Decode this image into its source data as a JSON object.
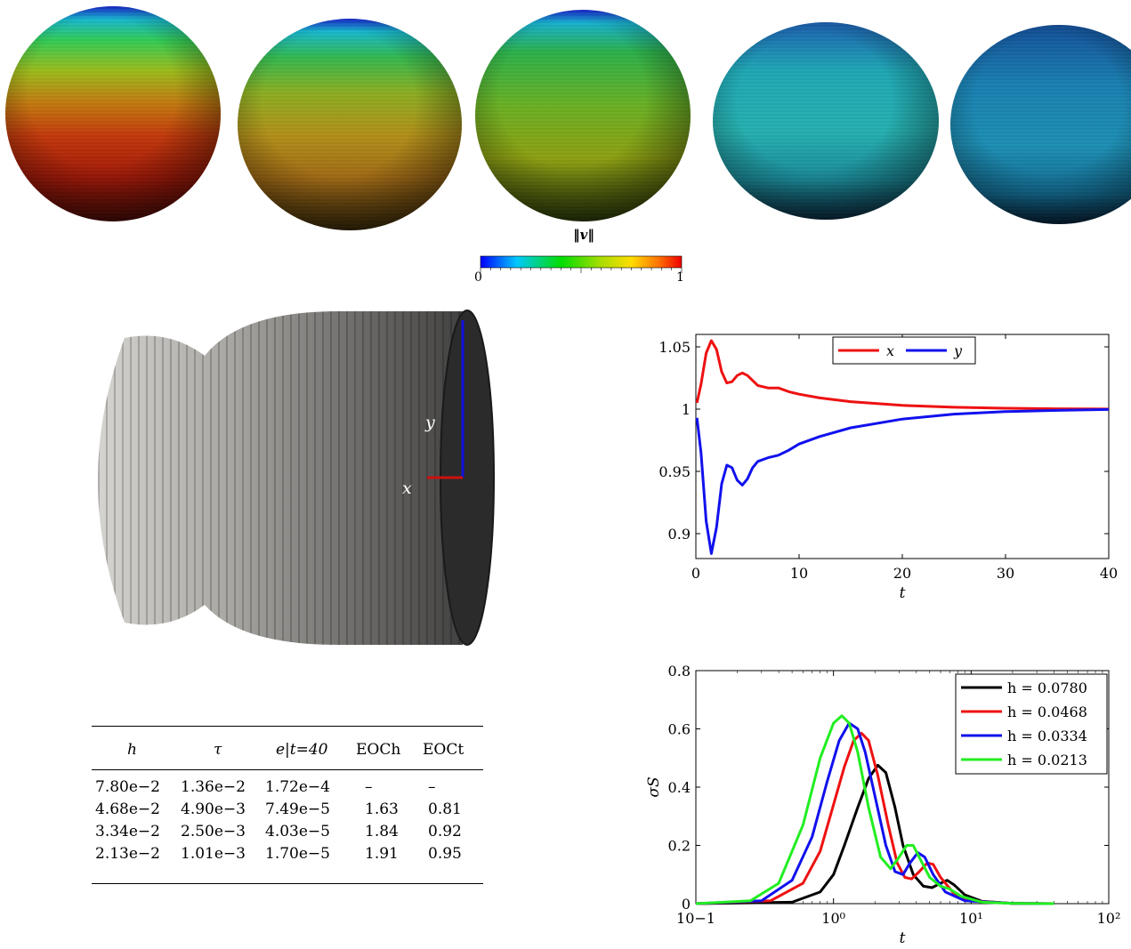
{
  "spheres": {
    "colorbar_label": "‖v‖",
    "colorbar_min": "0",
    "colorbar_max": "1",
    "norm_values": [
      0.78,
      0.62,
      0.55,
      0.38,
      0.3
    ]
  },
  "cylinder": {
    "axis_x_label": "x",
    "axis_y_label": "y"
  },
  "table": {
    "headers": [
      "h",
      "τ",
      "e|t=40",
      "EOCh",
      "EOCt"
    ],
    "rows": [
      [
        "7.80e−2",
        "1.36e−2",
        "1.72e−4",
        "–",
        "–"
      ],
      [
        "4.68e−2",
        "4.90e−3",
        "7.49e−5",
        "1.63",
        "0.81"
      ],
      [
        "3.34e−2",
        "2.50e−3",
        "4.03e−5",
        "1.84",
        "0.92"
      ],
      [
        "2.13e−2",
        "1.01e−3",
        "1.70e−5",
        "1.91",
        "0.95"
      ]
    ]
  },
  "chart_data": [
    {
      "type": "line",
      "xlabel": "t",
      "ylabel": "",
      "xlim": [
        0,
        40
      ],
      "ylim": [
        0.88,
        1.06
      ],
      "xticks": [
        "0",
        "10",
        "20",
        "30",
        "40"
      ],
      "yticks": [
        "0.9",
        "0.95",
        "1",
        "1.05"
      ],
      "legend_position": "top-center",
      "series": [
        {
          "name": "x",
          "color": "#ee1111",
          "points": [
            [
              0.1,
              1.005
            ],
            [
              0.5,
              1.02
            ],
            [
              1,
              1.045
            ],
            [
              1.5,
              1.055
            ],
            [
              2,
              1.048
            ],
            [
              2.5,
              1.03
            ],
            [
              3,
              1.021
            ],
            [
              3.5,
              1.022
            ],
            [
              4,
              1.027
            ],
            [
              4.5,
              1.029
            ],
            [
              5,
              1.027
            ],
            [
              5.5,
              1.023
            ],
            [
              6,
              1.019
            ],
            [
              7,
              1.017
            ],
            [
              8,
              1.017
            ],
            [
              9,
              1.014
            ],
            [
              10,
              1.012
            ],
            [
              12,
              1.009
            ],
            [
              15,
              1.006
            ],
            [
              20,
              1.003
            ],
            [
              25,
              1.0015
            ],
            [
              30,
              1.0007
            ],
            [
              35,
              1.0003
            ],
            [
              40,
              1.0001
            ]
          ]
        },
        {
          "name": "y",
          "color": "#1111ee",
          "points": [
            [
              0.1,
              0.993
            ],
            [
              0.5,
              0.965
            ],
            [
              1,
              0.91
            ],
            [
              1.5,
              0.884
            ],
            [
              2,
              0.905
            ],
            [
              2.5,
              0.94
            ],
            [
              3,
              0.955
            ],
            [
              3.5,
              0.953
            ],
            [
              4,
              0.943
            ],
            [
              4.5,
              0.939
            ],
            [
              5,
              0.944
            ],
            [
              5.5,
              0.953
            ],
            [
              6,
              0.958
            ],
            [
              7,
              0.961
            ],
            [
              8,
              0.963
            ],
            [
              9,
              0.967
            ],
            [
              10,
              0.972
            ],
            [
              12,
              0.978
            ],
            [
              15,
              0.985
            ],
            [
              20,
              0.992
            ],
            [
              25,
              0.996
            ],
            [
              30,
              0.998
            ],
            [
              35,
              0.999
            ],
            [
              40,
              0.9997
            ]
          ]
        }
      ]
    },
    {
      "type": "line",
      "xlabel": "t",
      "ylabel": "σS",
      "xscale": "log",
      "xlim": [
        0.1,
        100
      ],
      "ylim": [
        0,
        0.8
      ],
      "xticks": [
        "10−1",
        "10⁰",
        "10¹",
        "10²"
      ],
      "yticks": [
        "0",
        "0.2",
        "0.4",
        "0.6",
        "0.8"
      ],
      "legend_position": "top-right",
      "series": [
        {
          "name": "h = 0.0780",
          "color": "#000000",
          "points": [
            [
              0.1,
              0
            ],
            [
              0.5,
              0.005
            ],
            [
              0.8,
              0.04
            ],
            [
              1.0,
              0.1
            ],
            [
              1.2,
              0.2
            ],
            [
              1.5,
              0.33
            ],
            [
              1.8,
              0.43
            ],
            [
              2.1,
              0.475
            ],
            [
              2.4,
              0.45
            ],
            [
              2.8,
              0.33
            ],
            [
              3.2,
              0.2
            ],
            [
              3.8,
              0.1
            ],
            [
              4.5,
              0.06
            ],
            [
              5.2,
              0.055
            ],
            [
              6.0,
              0.07
            ],
            [
              6.7,
              0.08
            ],
            [
              7.5,
              0.065
            ],
            [
              9,
              0.03
            ],
            [
              12,
              0.008
            ],
            [
              20,
              0.001
            ],
            [
              40,
              0
            ]
          ]
        },
        {
          "name": "h = 0.0468",
          "color": "#ee1111",
          "points": [
            [
              0.1,
              0
            ],
            [
              0.35,
              0.01
            ],
            [
              0.6,
              0.07
            ],
            [
              0.8,
              0.18
            ],
            [
              1.0,
              0.34
            ],
            [
              1.2,
              0.47
            ],
            [
              1.4,
              0.56
            ],
            [
              1.6,
              0.585
            ],
            [
              1.8,
              0.56
            ],
            [
              2.1,
              0.44
            ],
            [
              2.5,
              0.27
            ],
            [
              2.9,
              0.14
            ],
            [
              3.3,
              0.09
            ],
            [
              3.7,
              0.085
            ],
            [
              4.2,
              0.11
            ],
            [
              4.8,
              0.14
            ],
            [
              5.3,
              0.135
            ],
            [
              6,
              0.09
            ],
            [
              7.5,
              0.035
            ],
            [
              10,
              0.01
            ],
            [
              20,
              0.001
            ],
            [
              40,
              0
            ]
          ]
        },
        {
          "name": "h = 0.0334",
          "color": "#1111ee",
          "points": [
            [
              0.1,
              0
            ],
            [
              0.3,
              0.01
            ],
            [
              0.5,
              0.08
            ],
            [
              0.7,
              0.23
            ],
            [
              0.9,
              0.42
            ],
            [
              1.1,
              0.56
            ],
            [
              1.3,
              0.62
            ],
            [
              1.5,
              0.6
            ],
            [
              1.7,
              0.52
            ],
            [
              2.0,
              0.37
            ],
            [
              2.4,
              0.2
            ],
            [
              2.8,
              0.11
            ],
            [
              3.2,
              0.1
            ],
            [
              3.6,
              0.14
            ],
            [
              4.1,
              0.175
            ],
            [
              4.6,
              0.16
            ],
            [
              5.3,
              0.1
            ],
            [
              6.5,
              0.04
            ],
            [
              9,
              0.01
            ],
            [
              20,
              0.001
            ],
            [
              40,
              0
            ]
          ]
        },
        {
          "name": "h = 0.0213",
          "color": "#22ee22",
          "points": [
            [
              0.1,
              0
            ],
            [
              0.25,
              0.01
            ],
            [
              0.4,
              0.07
            ],
            [
              0.6,
              0.27
            ],
            [
              0.8,
              0.5
            ],
            [
              1.0,
              0.62
            ],
            [
              1.15,
              0.645
            ],
            [
              1.3,
              0.62
            ],
            [
              1.5,
              0.52
            ],
            [
              1.8,
              0.33
            ],
            [
              2.2,
              0.16
            ],
            [
              2.6,
              0.12
            ],
            [
              3.0,
              0.16
            ],
            [
              3.4,
              0.2
            ],
            [
              3.8,
              0.2
            ],
            [
              4.3,
              0.15
            ],
            [
              5,
              0.09
            ],
            [
              6,
              0.06
            ],
            [
              7,
              0.05
            ],
            [
              8.5,
              0.025
            ],
            [
              12,
              0.005
            ],
            [
              20,
              0.001
            ],
            [
              40,
              0
            ]
          ]
        }
      ]
    }
  ]
}
